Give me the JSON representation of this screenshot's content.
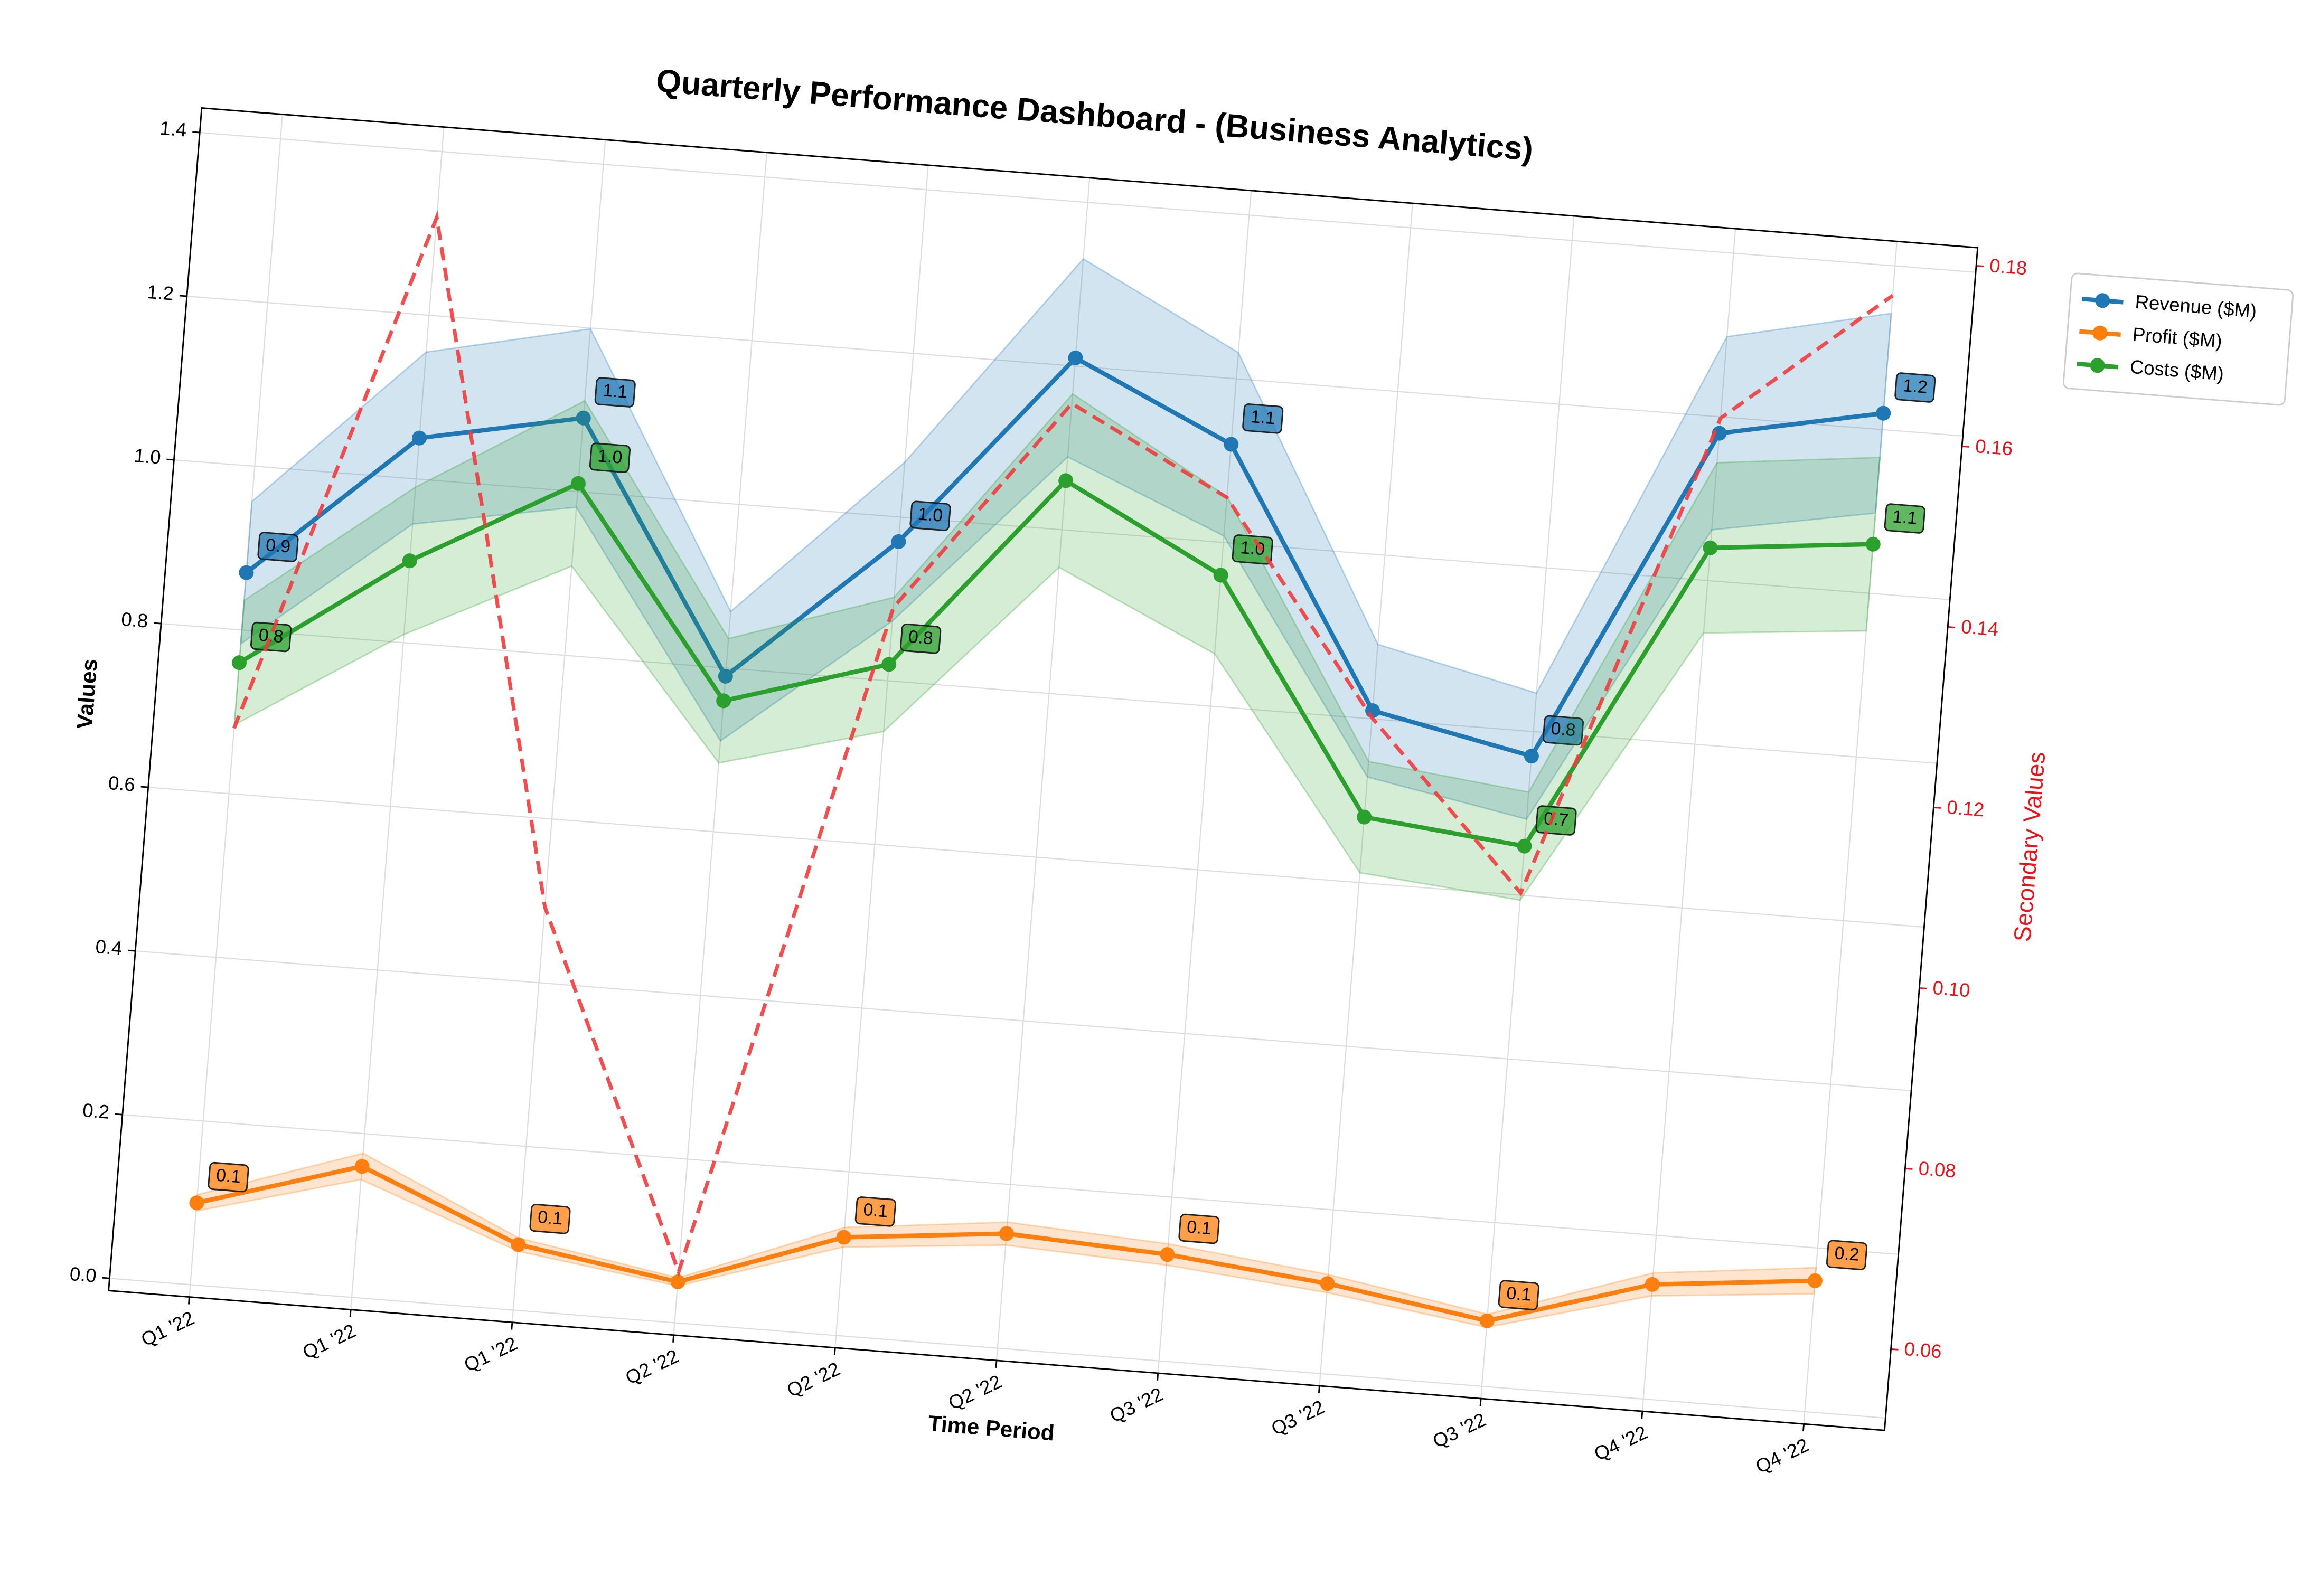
{
  "chart_data": {
    "type": "line",
    "title": "Quarterly Performance Dashboard - (Business Analytics)",
    "x_label": "Time Period",
    "y_label": "Values",
    "y2_label": "Secondary Values",
    "categories": [
      "Q1 '22",
      "Q1 '22",
      "Q1 '22",
      "Q2 '22",
      "Q2 '22",
      "Q2 '22",
      "Q3 '22",
      "Q3 '22",
      "Q3 '22",
      "Q4 '22",
      "Q4 '22"
    ],
    "series": [
      {
        "name": "Revenue ($M)",
        "color": "#1f77b4",
        "values": [
          0.87,
          1.05,
          1.09,
          0.79,
          0.97,
          1.21,
          1.12,
          0.81,
          0.77,
          1.18,
          1.22
        ],
        "value_labels": [
          "0.9",
          null,
          "1.1",
          null,
          "1.0",
          null,
          "1.1",
          null,
          "0.8",
          null,
          "1.2"
        ]
      },
      {
        "name": "Profit ($M)",
        "color": "#ff7f0e",
        "values": [
          0.1,
          0.16,
          0.08,
          0.05,
          0.12,
          0.14,
          0.13,
          0.11,
          0.08,
          0.14,
          0.16
        ],
        "value_labels": [
          "0.1",
          null,
          "0.1",
          null,
          "0.1",
          null,
          "0.1",
          null,
          "0.1",
          null,
          "0.2"
        ]
      },
      {
        "name": "Costs ($M)",
        "color": "#2ca02c",
        "values": [
          0.76,
          0.9,
          1.01,
          0.76,
          0.82,
          1.06,
          0.96,
          0.68,
          0.66,
          1.04,
          1.06
        ],
        "value_labels": [
          "0.8",
          null,
          "1.0",
          null,
          "0.8",
          null,
          "1.0",
          null,
          "0.7",
          null,
          "1.1"
        ]
      },
      {
        "color": "#f03c3c",
        "axis": "y2",
        "dashed": true,
        "values": [
          0.114,
          0.172,
          0.097,
          0.058,
          0.133,
          0.157,
          0.148,
          0.125,
          0.107,
          0.161,
          0.176
        ]
      }
    ],
    "band_pct": 10,
    "xlim": [
      -0.5,
      10.5
    ],
    "ylim": [
      -0.015,
      1.43
    ],
    "yticks": [
      {
        "value": 0,
        "label": "0.0"
      },
      0.2,
      0.4,
      0.6,
      0.8,
      {
        "value": 1,
        "label": "1.0"
      },
      1.2,
      1.4
    ],
    "y2lim": [
      0.051,
      0.182
    ],
    "y2ticks": [
      0.06,
      0.08,
      {
        "value": 0.1,
        "label": "0.10"
      },
      0.12,
      0.14,
      0.16,
      0.18
    ],
    "y2_color": "#e8141c",
    "grid": true,
    "legend": "outside-right",
    "rotation": 4.5
  }
}
